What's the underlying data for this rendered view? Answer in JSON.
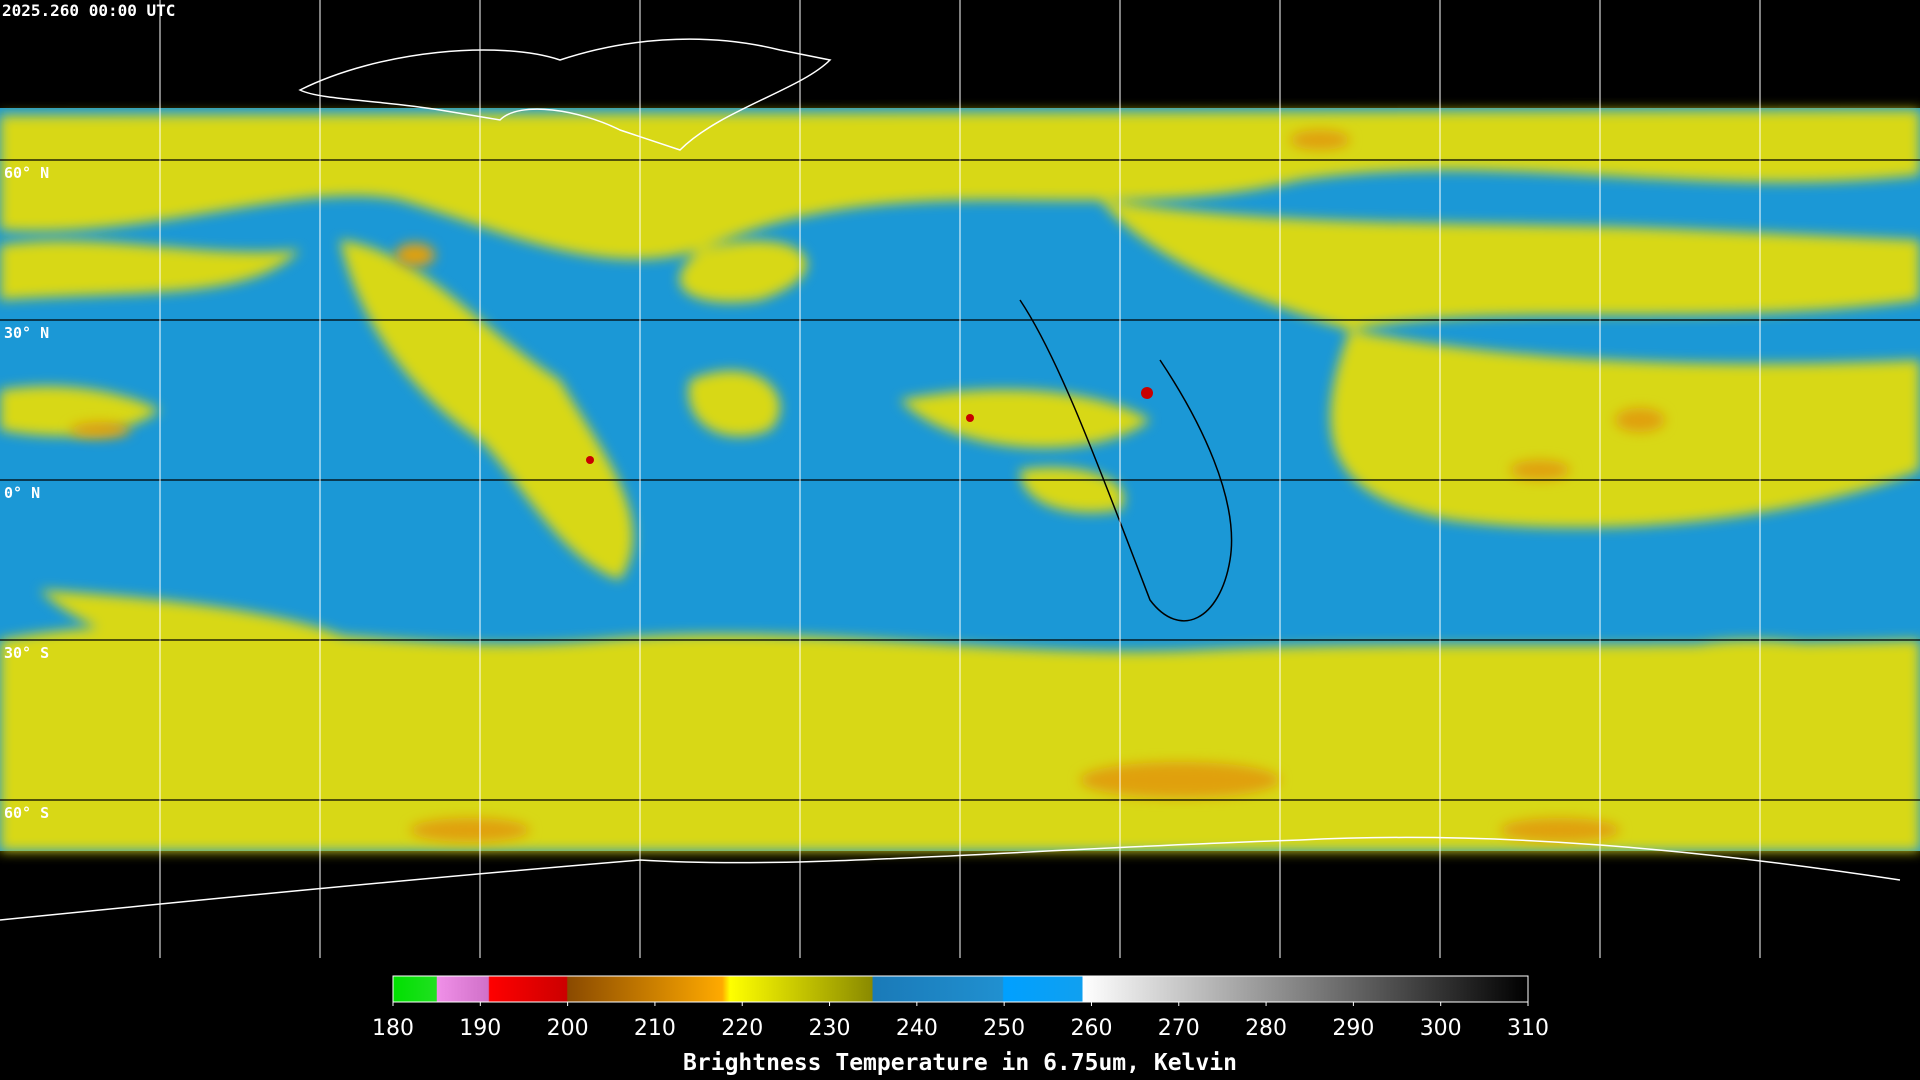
{
  "header": {
    "title": "2025.260 00:00 UTC"
  },
  "map": {
    "latitude_labels": [
      "60° N",
      "30° N",
      "0° N",
      "30° S",
      "60° S"
    ]
  },
  "colorbar": {
    "ticks": [
      180,
      190,
      200,
      210,
      220,
      230,
      240,
      250,
      260,
      270,
      280,
      290,
      300,
      310
    ],
    "label": "Brightness Temperature in 6.75um, Kelvin"
  }
}
